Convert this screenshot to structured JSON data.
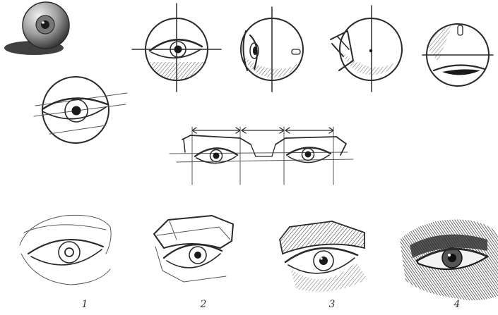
{
  "labels": {
    "study1": "1",
    "study2": "2",
    "study3": "3",
    "study4": "4"
  },
  "colors": {
    "paper": "#ffffff",
    "graphite": "#2a2a2a",
    "shade": "#3a3a3a"
  }
}
